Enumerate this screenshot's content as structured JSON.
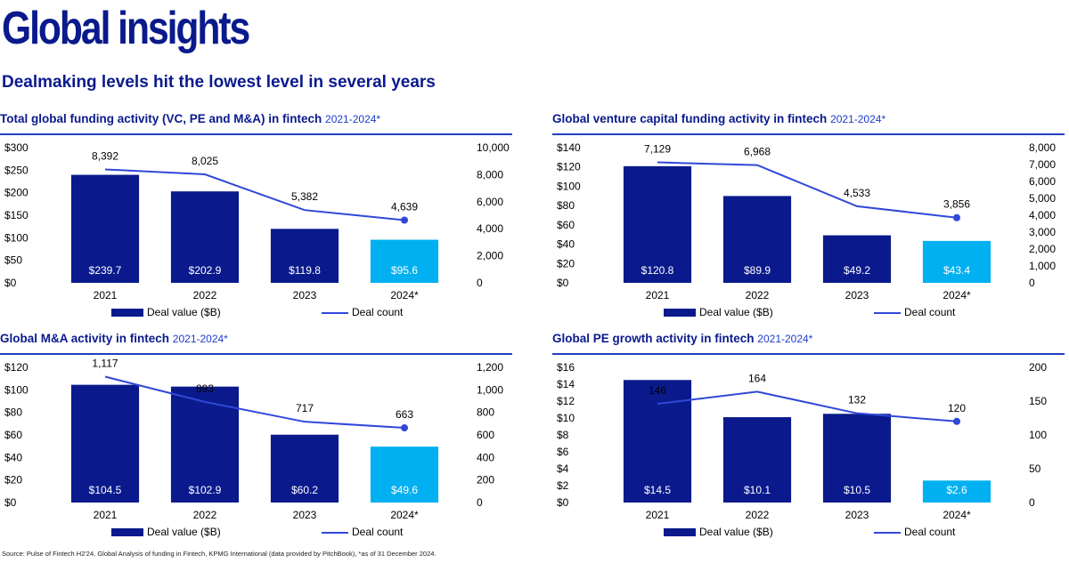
{
  "title": "Global insights",
  "subtitle": "Dealmaking levels hit the lowest level in several years",
  "legend": {
    "bar": "Deal value ($B)",
    "line": "Deal count"
  },
  "source": "Source: Pulse of Fintech H2'24, Global Analysis of funding in Fintech, KPMG International (data provided by PitchBook), *as of 31 December 2024.",
  "colors": {
    "bar": "#0a1a8c",
    "bar_highlight": "#00b0f0",
    "line": "#3048d8",
    "title": "#0a1a8c"
  },
  "chart_data": [
    {
      "type": "bar",
      "title": "Total global funding activity (VC, PE and M&A) in fintech",
      "title_years": "2021-2024*",
      "categories": [
        "2021",
        "2022",
        "2023",
        "2024*"
      ],
      "series": [
        {
          "name": "Deal value ($B)",
          "values": [
            239.7,
            202.9,
            119.8,
            95.6
          ],
          "labels": [
            "$239.7",
            "$202.9",
            "$119.8",
            "$95.6"
          ]
        },
        {
          "name": "Deal count",
          "values": [
            8392,
            8025,
            5382,
            4639
          ],
          "labels": [
            "8,392",
            "8,025",
            "5,382",
            "4,639"
          ]
        }
      ],
      "ylim": [
        0,
        300
      ],
      "y_ticks": [
        "$0",
        "$50",
        "$100",
        "$150",
        "$200",
        "$250",
        "$300"
      ],
      "y2lim": [
        0,
        10000
      ],
      "y2_ticks": [
        "0",
        "2,000",
        "4,000",
        "6,000",
        "8,000",
        "10,000"
      ]
    },
    {
      "type": "bar",
      "title": "Global venture capital funding activity in fintech",
      "title_years": "2021-2024*",
      "categories": [
        "2021",
        "2022",
        "2023",
        "2024*"
      ],
      "series": [
        {
          "name": "Deal value ($B)",
          "values": [
            120.8,
            89.9,
            49.2,
            43.4
          ],
          "labels": [
            "$120.8",
            "$89.9",
            "$49.2",
            "$43.4"
          ]
        },
        {
          "name": "Deal count",
          "values": [
            7129,
            6968,
            4533,
            3856
          ],
          "labels": [
            "7,129",
            "6,968",
            "4,533",
            "3,856"
          ]
        }
      ],
      "ylim": [
        0,
        140
      ],
      "y_ticks": [
        "$0",
        "$20",
        "$40",
        "$60",
        "$80",
        "$100",
        "$120",
        "$140"
      ],
      "y2lim": [
        0,
        8000
      ],
      "y2_ticks": [
        "0",
        "1,000",
        "2,000",
        "3,000",
        "4,000",
        "5,000",
        "6,000",
        "7,000",
        "8,000"
      ]
    },
    {
      "type": "bar",
      "title": "Global M&A activity in fintech",
      "title_years": "2021-2024*",
      "categories": [
        "2021",
        "2022",
        "2023",
        "2024*"
      ],
      "series": [
        {
          "name": "Deal value ($B)",
          "values": [
            104.5,
            102.9,
            60.2,
            49.6
          ],
          "labels": [
            "$104.5",
            "$102.9",
            "$60.2",
            "$49.6"
          ]
        },
        {
          "name": "Deal count",
          "values": [
            1117,
            893,
            717,
            663
          ],
          "labels": [
            "1,117",
            "893",
            "717",
            "663"
          ]
        }
      ],
      "ylim": [
        0,
        120
      ],
      "y_ticks": [
        "$0",
        "$20",
        "$40",
        "$60",
        "$80",
        "$100",
        "$120"
      ],
      "y2lim": [
        0,
        1200
      ],
      "y2_ticks": [
        "0",
        "200",
        "400",
        "600",
        "800",
        "1,000",
        "1,200"
      ]
    },
    {
      "type": "bar",
      "title": "Global PE growth activity in fintech",
      "title_years": "2021-2024*",
      "categories": [
        "2021",
        "2022",
        "2023",
        "2024*"
      ],
      "series": [
        {
          "name": "Deal value ($B)",
          "values": [
            14.5,
            10.1,
            10.5,
            2.6
          ],
          "labels": [
            "$14.5",
            "$10.1",
            "$10.5",
            "$2.6"
          ]
        },
        {
          "name": "Deal count",
          "values": [
            146,
            164,
            132,
            120
          ],
          "labels": [
            "146",
            "164",
            "132",
            "120"
          ]
        }
      ],
      "ylim": [
        0,
        16
      ],
      "y_ticks": [
        "$0",
        "$2",
        "$4",
        "$6",
        "$8",
        "$10",
        "$12",
        "$14",
        "$16"
      ],
      "y2lim": [
        0,
        200
      ],
      "y2_ticks": [
        "0",
        "50",
        "100",
        "150",
        "200"
      ]
    }
  ]
}
